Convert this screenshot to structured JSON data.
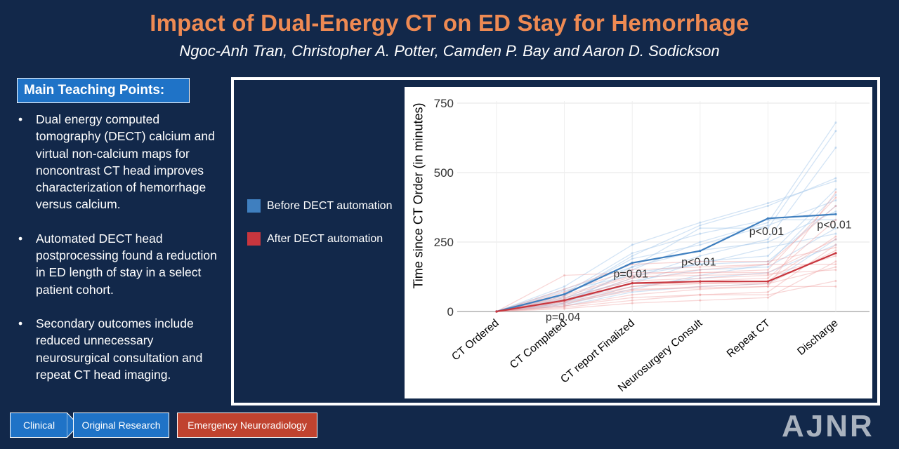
{
  "header": {
    "title": "Impact of Dual-Energy CT on ED Stay for Hemorrhage",
    "authors": "Ngoc-Anh Tran, Christopher A. Potter, Camden P. Bay and Aaron D. Sodickson"
  },
  "teaching": {
    "heading": "Main Teaching Points:",
    "bullet": "•",
    "points": [
      "Dual energy computed tomography (DECT) calcium and virtual non-calcium maps for noncontrast CT head improves characterization of hemorrhage versus calcium.",
      "Automated DECT head postprocessing found a reduction in ED length of stay in a select patient cohort.",
      "Secondary outcomes include reduced unnecessary neurosurgical consultation and repeat CT head imaging."
    ]
  },
  "chart_data": {
    "type": "line",
    "categories": [
      "CT Ordered",
      "CT Completed",
      "CT report Finalized",
      "Neurosurgery Consult",
      "Repeat CT",
      "Discharge"
    ],
    "ylabel": "Time since CT Order (in minutes)",
    "xlabel": "",
    "ylim": [
      0,
      750
    ],
    "yticks": [
      0,
      250,
      500,
      750
    ],
    "grid": "horizontal",
    "legend_position": "left",
    "series": [
      {
        "name": "Before DECT automation",
        "color": "#3f7fbf",
        "values": [
          0,
          62,
          175,
          218,
          335,
          350
        ]
      },
      {
        "name": "After DECT automation",
        "color": "#c8363e",
        "values": [
          0,
          40,
          102,
          108,
          108,
          210
        ]
      }
    ],
    "annotations": [
      {
        "category": "CT Completed",
        "text": "p=0.04",
        "y": -18
      },
      {
        "category": "CT report Finalized",
        "text": "p=0.01",
        "y": 138
      },
      {
        "category": "Neurosurgery Consult",
        "text": "p<0.01",
        "y": 180
      },
      {
        "category": "Repeat CT",
        "text": "p<0.01",
        "y": 290
      },
      {
        "category": "Discharge",
        "text": "p<0.01",
        "y": 315
      }
    ],
    "before_individual": [
      [
        0,
        30,
        150,
        250,
        320,
        680
      ],
      [
        0,
        45,
        160,
        300,
        300,
        650
      ],
      [
        0,
        40,
        120,
        200,
        260,
        590
      ],
      [
        0,
        55,
        200,
        310,
        380,
        480
      ],
      [
        0,
        90,
        240,
        320,
        390,
        470
      ],
      [
        0,
        35,
        100,
        180,
        200,
        440
      ],
      [
        0,
        25,
        80,
        130,
        170,
        420
      ],
      [
        0,
        60,
        190,
        240,
        310,
        400
      ],
      [
        0,
        75,
        130,
        170,
        180,
        380
      ],
      [
        0,
        50,
        110,
        150,
        160,
        300
      ],
      [
        0,
        20,
        70,
        90,
        100,
        260
      ],
      [
        0,
        65,
        210,
        280,
        330,
        330
      ],
      [
        0,
        80,
        160,
        220,
        250,
        360
      ],
      [
        0,
        40,
        140,
        170,
        230,
        280
      ],
      [
        0,
        30,
        90,
        120,
        140,
        240
      ]
    ],
    "after_individual": [
      [
        0,
        20,
        60,
        80,
        90,
        430
      ],
      [
        0,
        35,
        120,
        140,
        150,
        410
      ],
      [
        0,
        60,
        130,
        150,
        170,
        380
      ],
      [
        0,
        25,
        90,
        110,
        120,
        330
      ],
      [
        0,
        45,
        100,
        100,
        110,
        270
      ],
      [
        0,
        130,
        140,
        140,
        140,
        260
      ],
      [
        0,
        15,
        40,
        60,
        70,
        240
      ],
      [
        0,
        80,
        170,
        180,
        180,
        230
      ],
      [
        0,
        30,
        75,
        90,
        100,
        220
      ],
      [
        0,
        50,
        110,
        120,
        130,
        200
      ],
      [
        0,
        10,
        30,
        40,
        50,
        180
      ],
      [
        0,
        70,
        150,
        160,
        170,
        170
      ],
      [
        0,
        40,
        90,
        100,
        100,
        160
      ],
      [
        0,
        55,
        125,
        130,
        135,
        150
      ],
      [
        0,
        20,
        50,
        60,
        60,
        110
      ],
      [
        0,
        35,
        80,
        85,
        90,
        90
      ]
    ]
  },
  "tags": {
    "clinical": "Clinical",
    "original": "Original Research",
    "emergency": "Emergency Neuroradiology"
  },
  "colors": {
    "background": "#12284a",
    "title": "#ee8a53",
    "accent_blue": "#1f73c7",
    "tag_red": "#c0432f",
    "before": "#3f7fbf",
    "after": "#c8363e"
  },
  "logo": "AJNR"
}
